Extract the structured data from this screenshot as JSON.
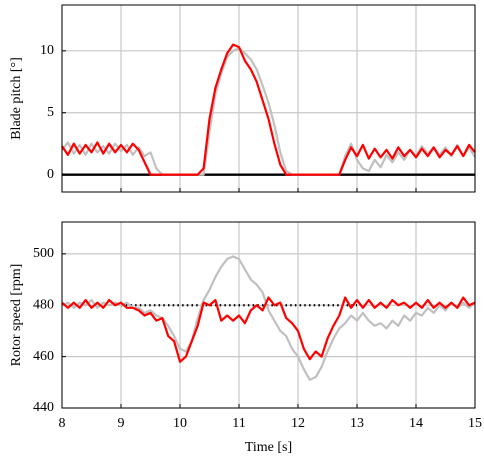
{
  "chart_data": [
    {
      "type": "line",
      "ylabel": "Blade pitch [°]",
      "x": [
        8,
        8.1,
        8.2,
        8.3,
        8.4,
        8.5,
        8.6,
        8.7,
        8.8,
        8.9,
        9,
        9.1,
        9.2,
        9.3,
        9.4,
        9.5,
        9.6,
        9.7,
        9.8,
        9.9,
        10,
        10.1,
        10.2,
        10.3,
        10.4,
        10.5,
        10.6,
        10.7,
        10.8,
        10.9,
        11,
        11.1,
        11.2,
        11.3,
        11.4,
        11.5,
        11.6,
        11.7,
        11.8,
        11.9,
        12,
        12.1,
        12.2,
        12.3,
        12.4,
        12.5,
        12.6,
        12.7,
        12.8,
        12.9,
        13,
        13.1,
        13.2,
        13.3,
        13.4,
        13.5,
        13.6,
        13.7,
        13.8,
        13.9,
        14,
        14.1,
        14.2,
        14.3,
        14.4,
        14.5,
        14.6,
        14.7,
        14.8,
        14.9,
        15
      ],
      "series": [
        {
          "color": "#c0c0c0",
          "values": [
            2.0,
            2.6,
            1.7,
            2.4,
            1.6,
            2.5,
            1.8,
            2.3,
            1.7,
            2.5,
            1.9,
            2.4,
            1.6,
            2.2,
            1.5,
            1.8,
            0.5,
            0,
            0,
            0,
            0,
            0,
            0,
            0,
            0,
            3.5,
            6.5,
            8.2,
            9.5,
            10.0,
            10.2,
            9.8,
            9.3,
            8.5,
            7.2,
            5.8,
            4.0,
            1.8,
            0.3,
            0,
            0,
            0,
            0,
            0,
            0,
            0,
            0,
            0,
            1.5,
            2.5,
            1.2,
            0.5,
            0.3,
            1.2,
            0.6,
            1.6,
            1.0,
            1.8,
            1.2,
            2.0,
            1.5,
            2.3,
            1.7,
            2.2,
            1.6,
            2.2,
            1.5,
            2.4,
            1.5,
            2.2,
            1.4
          ]
        },
        {
          "color": "#ff0000",
          "values": [
            2.3,
            1.6,
            2.5,
            1.7,
            2.4,
            1.8,
            2.6,
            1.7,
            2.5,
            1.8,
            2.4,
            1.8,
            2.5,
            2.0,
            1.0,
            0,
            0,
            0,
            0,
            0,
            0,
            0,
            0,
            0,
            0.5,
            4.5,
            7.0,
            8.5,
            9.8,
            10.5,
            10.3,
            9.2,
            8.5,
            7.5,
            6.0,
            4.5,
            2.5,
            0.8,
            0,
            0,
            0,
            0,
            0,
            0,
            0,
            0,
            0,
            0,
            1.2,
            2.2,
            1.5,
            2.4,
            1.3,
            2.1,
            1.4,
            2.0,
            1.3,
            2.2,
            1.5,
            2.0,
            1.4,
            2.1,
            1.5,
            2.2,
            1.4,
            2.0,
            1.6,
            2.3,
            1.5,
            2.4,
            1.8
          ]
        }
      ],
      "hlines": [
        {
          "value": 0,
          "color": "#000000",
          "style": "solid"
        }
      ],
      "xlim": [
        8,
        15
      ],
      "xticks": [
        8,
        9,
        10,
        11,
        12,
        13,
        14,
        15
      ],
      "show_xtick_labels": false,
      "ylim": [
        -1.4,
        13.7
      ],
      "yticks": [
        0,
        5,
        10
      ],
      "grid": true
    },
    {
      "type": "line",
      "ylabel": "Rotor speed [rpm]",
      "xlabel": "Time [s]",
      "x": [
        8,
        8.1,
        8.2,
        8.3,
        8.4,
        8.5,
        8.6,
        8.7,
        8.8,
        8.9,
        9,
        9.1,
        9.2,
        9.3,
        9.4,
        9.5,
        9.6,
        9.7,
        9.8,
        9.9,
        10,
        10.1,
        10.2,
        10.3,
        10.4,
        10.5,
        10.6,
        10.7,
        10.8,
        10.9,
        11,
        11.1,
        11.2,
        11.3,
        11.4,
        11.5,
        11.6,
        11.7,
        11.8,
        11.9,
        12,
        12.1,
        12.2,
        12.3,
        12.4,
        12.5,
        12.6,
        12.7,
        12.8,
        12.9,
        13,
        13.1,
        13.2,
        13.3,
        13.4,
        13.5,
        13.6,
        13.7,
        13.8,
        13.9,
        14,
        14.1,
        14.2,
        14.3,
        14.4,
        14.5,
        14.6,
        14.7,
        14.8,
        14.9,
        15
      ],
      "series": [
        {
          "color": "#c0c0c0",
          "values": [
            480,
            481,
            479,
            481,
            480,
            482,
            479,
            481,
            480,
            481,
            480,
            481,
            479,
            479,
            477,
            478,
            476,
            475,
            472,
            468,
            463,
            462,
            466,
            475,
            482,
            486,
            491,
            495,
            498,
            499,
            498,
            494,
            490,
            488,
            485,
            478,
            474,
            470,
            468,
            463,
            460,
            455,
            451,
            452,
            456,
            462,
            467,
            471,
            473,
            476,
            474,
            477,
            474,
            472,
            473,
            471,
            474,
            472,
            476,
            474,
            477,
            476,
            479,
            477,
            480,
            478,
            481,
            479,
            481,
            479,
            481
          ]
        },
        {
          "color": "#ff0000",
          "values": [
            481,
            479,
            481,
            479,
            482,
            479,
            481,
            479,
            482,
            480,
            481,
            479,
            479,
            478,
            476,
            477,
            474,
            475,
            468,
            466,
            458,
            460,
            466,
            472,
            481,
            480,
            482,
            474,
            476,
            474,
            476,
            473,
            478,
            480,
            478,
            483,
            480,
            481,
            475,
            473,
            470,
            463,
            459,
            462,
            460,
            467,
            472,
            476,
            483,
            479,
            482,
            479,
            482,
            479,
            481,
            479,
            482,
            480,
            481,
            479,
            481,
            479,
            482,
            479,
            481,
            479,
            481,
            479,
            483,
            480,
            481
          ]
        }
      ],
      "hlines": [
        {
          "value": 480,
          "from": 9,
          "to": 13,
          "color": "#000000",
          "style": "dotted"
        }
      ],
      "xlim": [
        8,
        15
      ],
      "xticks": [
        8,
        9,
        10,
        11,
        12,
        13,
        14,
        15
      ],
      "show_xtick_labels": true,
      "ylim": [
        440,
        512.4
      ],
      "yticks": [
        440,
        460,
        480,
        500
      ],
      "grid": true
    }
  ]
}
